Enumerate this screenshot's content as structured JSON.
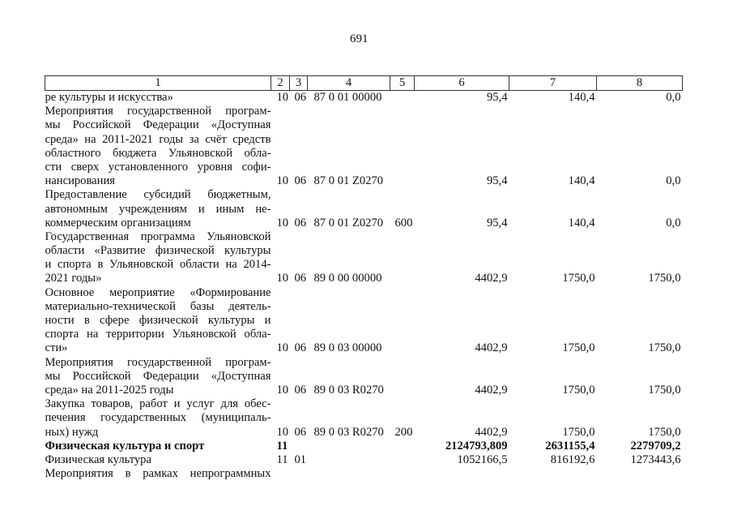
{
  "page_number": "691",
  "header": [
    "1",
    "2",
    "3",
    "4",
    "5",
    "6",
    "7",
    "8"
  ],
  "rows": [
    {
      "lines": [
        "ре культуры и искусства»"
      ],
      "c2": "10",
      "c3": "06",
      "c4": "87 0 01 00000",
      "c5": "",
      "c6": "95,4",
      "c7": "140,4",
      "c8": "0,0",
      "bold": false
    },
    {
      "lines": [
        "Мероприятия государственной програм-",
        "мы Российской Федерации «Доступная",
        "среда» на 2011-2021 годы за счёт средств",
        "областного бюджета Ульяновской обла-",
        "сти сверх установленного уровня софи-",
        "нансирования"
      ],
      "c2": "10",
      "c3": "06",
      "c4": "87 0 01 Z0270",
      "c5": "",
      "c6": "95,4",
      "c7": "140,4",
      "c8": "0,0",
      "bold": false
    },
    {
      "lines": [
        "Предоставление субсидий бюджетным,",
        "автономным учреждениям и иным не-",
        "коммерческим организациям"
      ],
      "c2": "10",
      "c3": "06",
      "c4": "87 0 01 Z0270",
      "c5": "600",
      "c6": "95,4",
      "c7": "140,4",
      "c8": "0,0",
      "bold": false
    },
    {
      "lines": [
        "Государственная программа Ульяновской",
        "области «Развитие физической культуры",
        "и спорта в Ульяновской области на 2014-",
        "2021 годы»"
      ],
      "c2": "10",
      "c3": "06",
      "c4": "89 0 00 00000",
      "c5": "",
      "c6": "4402,9",
      "c7": "1750,0",
      "c8": "1750,0",
      "bold": false
    },
    {
      "lines": [
        "Основное мероприятие «Формирование",
        "материально-технической базы деятель-",
        "ности в сфере физической культуры и",
        "спорта на территории Ульяновской обла-",
        "сти»"
      ],
      "c2": "10",
      "c3": "06",
      "c4": "89 0 03 00000",
      "c5": "",
      "c6": "4402,9",
      "c7": "1750,0",
      "c8": "1750,0",
      "bold": false
    },
    {
      "lines": [
        "Мероприятия государственной програм-",
        "мы Российской Федерации «Доступная",
        "среда» на 2011-2025 годы"
      ],
      "c2": "10",
      "c3": "06",
      "c4": "89 0 03 R0270",
      "c5": "",
      "c6": "4402,9",
      "c7": "1750,0",
      "c8": "1750,0",
      "bold": false
    },
    {
      "lines": [
        "Закупка товаров, работ и услуг для обес-",
        "печения государственных (муниципаль-",
        "ных) нужд"
      ],
      "c2": "10",
      "c3": "06",
      "c4": "89 0 03 R0270",
      "c5": "200",
      "c6": "4402,9",
      "c7": "1750,0",
      "c8": "1750,0",
      "bold": false
    },
    {
      "lines": [
        "Физическая культура и спорт"
      ],
      "c2": "11",
      "c3": "",
      "c4": "",
      "c5": "",
      "c6": "2124793,809",
      "c7": "2631155,4",
      "c8": "2279709,2",
      "bold": true
    },
    {
      "lines": [
        "Физическая культура"
      ],
      "c2": "11",
      "c3": "01",
      "c4": "",
      "c5": "",
      "c6": "1052166,5",
      "c7": "816192,6",
      "c8": "1273443,6",
      "bold": false
    },
    {
      "lines": [
        "Мероприятия в рамках непрограммных"
      ],
      "c2": "",
      "c3": "",
      "c4": "",
      "c5": "",
      "c6": "",
      "c7": "",
      "c8": "",
      "bold": false,
      "continued": true
    }
  ]
}
